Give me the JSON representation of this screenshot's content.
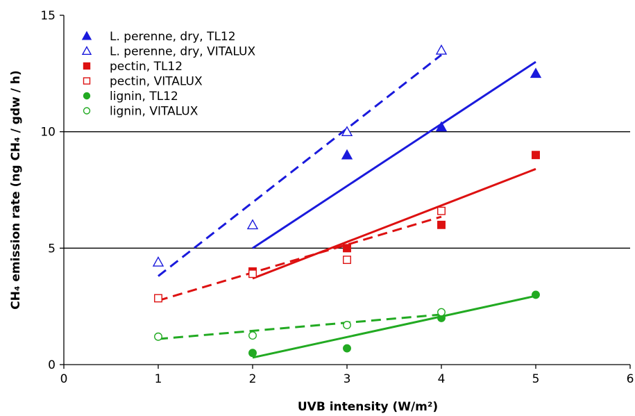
{
  "chart_data": {
    "type": "scatter",
    "xlabel": "UVB intensity (W/m²)",
    "ylabel": "CH₄ emission rate (ng CH₄ / gdw / h)",
    "xlim": [
      0,
      6
    ],
    "ylim": [
      0,
      15
    ],
    "xticks": [
      0,
      1,
      2,
      3,
      4,
      5,
      6
    ],
    "yticks": [
      0,
      5,
      10,
      15
    ],
    "horizontal_gridlines": [
      5,
      10
    ],
    "legend_position": "top-left",
    "series": [
      {
        "name": "L. perenne, dry, TL12",
        "color": "#1a1adc",
        "marker": "triangle-filled",
        "points": [
          [
            3,
            9.0
          ],
          [
            4,
            10.2
          ],
          [
            5,
            12.5
          ]
        ],
        "trendline": {
          "style": "solid",
          "from": [
            2,
            5.0
          ],
          "to": [
            5,
            13.0
          ]
        }
      },
      {
        "name": "L. perenne, dry, VITALUX",
        "color": "#1a1adc",
        "marker": "triangle-open",
        "points": [
          [
            1,
            4.4
          ],
          [
            2,
            6.0
          ],
          [
            3,
            10.0
          ],
          [
            4,
            13.5
          ]
        ],
        "trendline": {
          "style": "dashed",
          "from": [
            1,
            3.8
          ],
          "to": [
            4,
            13.3
          ]
        }
      },
      {
        "name": "pectin, TL12",
        "color": "#dd1111",
        "marker": "square-filled",
        "points": [
          [
            2,
            4.0
          ],
          [
            3,
            5.0
          ],
          [
            4,
            6.0
          ],
          [
            5,
            9.0
          ]
        ],
        "trendline": {
          "style": "solid",
          "from": [
            2,
            3.7
          ],
          "to": [
            5,
            8.4
          ]
        }
      },
      {
        "name": "pectin, VITALUX",
        "color": "#dd1111",
        "marker": "square-open",
        "points": [
          [
            1,
            2.85
          ],
          [
            2,
            3.9
          ],
          [
            3,
            4.5
          ],
          [
            4,
            6.6
          ]
        ],
        "trendline": {
          "style": "dashed",
          "from": [
            1,
            2.75
          ],
          "to": [
            4,
            6.35
          ]
        }
      },
      {
        "name": "lignin, TL12",
        "color": "#22aa22",
        "marker": "circle-filled",
        "points": [
          [
            2,
            0.5
          ],
          [
            3,
            0.7
          ],
          [
            4,
            2.0
          ],
          [
            5,
            3.0
          ]
        ],
        "trendline": {
          "style": "solid",
          "from": [
            2,
            0.3
          ],
          "to": [
            5,
            2.95
          ]
        }
      },
      {
        "name": "lignin, VITALUX",
        "color": "#22aa22",
        "marker": "circle-open",
        "points": [
          [
            1,
            1.2
          ],
          [
            2,
            1.25
          ],
          [
            3,
            1.7
          ],
          [
            4,
            2.25
          ]
        ],
        "trendline": {
          "style": "dashed",
          "from": [
            1,
            1.1
          ],
          "to": [
            4,
            2.15
          ]
        }
      }
    ]
  }
}
